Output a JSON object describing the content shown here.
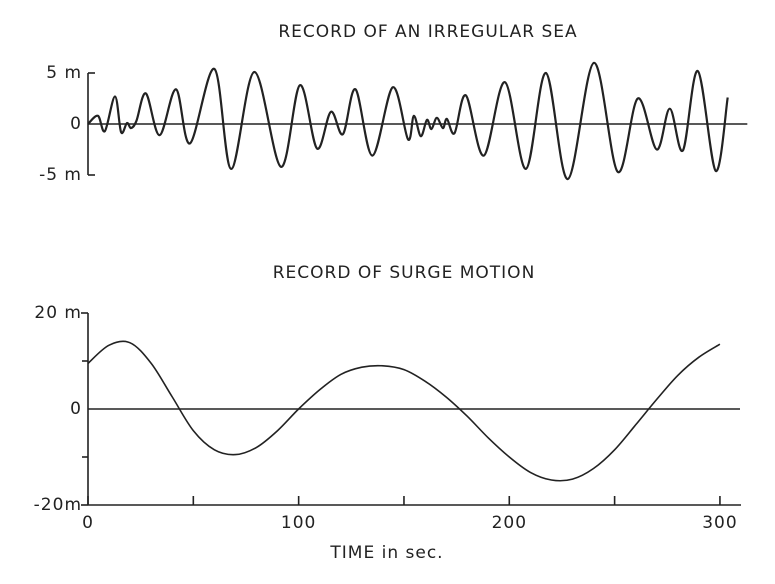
{
  "chart_data": [
    {
      "type": "line",
      "title": "RECORD OF AN IRREGULAR SEA",
      "x": [
        0,
        4.7,
        8,
        12.8,
        15.7,
        18.5,
        20.4,
        23,
        27.5,
        34,
        41.8,
        48.4,
        60,
        68,
        79,
        91.6,
        100.6,
        108.7,
        115.3,
        121,
        127,
        135,
        144.7,
        151.9,
        154.7,
        158,
        160.9,
        163,
        165.6,
        168.5,
        170.4,
        174,
        179.4,
        187.9,
        197.9,
        207.9,
        217.4,
        227.8,
        240.2,
        251.5,
        261,
        270,
        276.2,
        282.4,
        289.5,
        298,
        303.7
      ],
      "values": [
        0,
        0.8,
        -0.7,
        2.7,
        -0.8,
        0.1,
        -0.4,
        0.3,
        3,
        -1.1,
        3.4,
        -1.9,
        5.4,
        -4.4,
        5.1,
        -4.2,
        3.8,
        -2.4,
        1.2,
        -1,
        3.4,
        -3.1,
        3.6,
        -1.5,
        0.8,
        -1.2,
        0.4,
        -0.5,
        0.6,
        -0.4,
        0.5,
        -0.9,
        2.8,
        -3.1,
        4.1,
        -4.4,
        5,
        -5.4,
        6,
        -4.7,
        2.5,
        -2.5,
        1.5,
        -2.6,
        5.2,
        -4.6,
        2.6
      ],
      "color": "#222222",
      "xlim": [
        0,
        313
      ],
      "ylim": [
        -5,
        5
      ],
      "yticks": [
        {
          "value": 5,
          "label": "5 m"
        },
        0,
        {
          "value": -5,
          "label": "-5 m"
        }
      ]
    },
    {
      "type": "line",
      "title": "RECORD OF SURGE MOTION",
      "xlabel": "TIME in sec.",
      "x": [
        0,
        10,
        20,
        30,
        40,
        50,
        60,
        70,
        80,
        90,
        100,
        110,
        120,
        130,
        140,
        150,
        160,
        170,
        180,
        190,
        200,
        210,
        220,
        230,
        240,
        250,
        260,
        270,
        280,
        290,
        300
      ],
      "values": [
        9.5,
        13.3,
        13.8,
        9.5,
        2.5,
        -4.5,
        -8.5,
        -9.5,
        -8,
        -4.5,
        0,
        4,
        7.2,
        8.7,
        9,
        8.2,
        5.8,
        2.5,
        -1.5,
        -6,
        -10,
        -13.2,
        -14.8,
        -14.6,
        -12.4,
        -8.5,
        -3.3,
        2,
        7,
        10.8,
        13.5
      ],
      "color": "#222222",
      "xlim": [
        0,
        310
      ],
      "ylim": [
        -20,
        20
      ],
      "yticks": [
        {
          "value": 20,
          "label": "20 m"
        },
        0,
        {
          "value": -20,
          "label": "-20m"
        }
      ],
      "yminor_ticks": [
        10,
        -10
      ],
      "xticks": [
        0,
        100,
        200,
        300
      ],
      "xminor_ticks": [
        50,
        150,
        250
      ]
    }
  ]
}
